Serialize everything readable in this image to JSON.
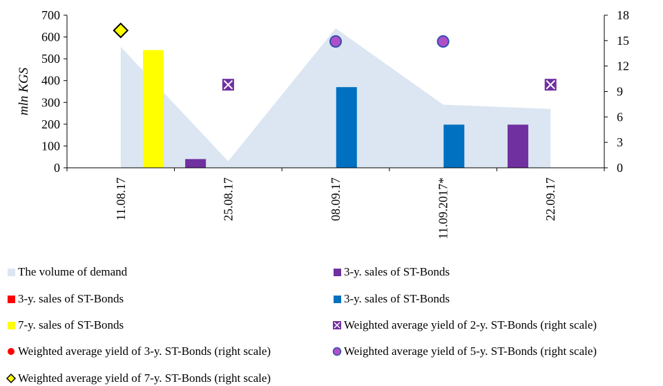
{
  "chart_data": {
    "type": "bar",
    "categories": [
      "11.08.17",
      "25.08.17",
      "08.09.17",
      "11.09.2017*",
      "22.09.17"
    ],
    "ylabel": "mln KGS",
    "ylim": [
      0,
      700
    ],
    "yticks": [
      0,
      100,
      200,
      300,
      400,
      500,
      600,
      700
    ],
    "y2lim": [
      0,
      18
    ],
    "y2ticks": [
      0,
      3,
      6,
      9,
      12,
      15,
      18
    ],
    "grid": false,
    "legend_position": "bottom",
    "colors": {
      "demand": "#dce6f2",
      "purple": "#7030a0",
      "red": "#ff0000",
      "blue": "#0070c0",
      "yellow": "#ffff00",
      "diamond": "#ffff00",
      "circle5": "#b050c8",
      "circle5_edge": "#2f4fb0"
    },
    "series": [
      {
        "name": "The volume of demand",
        "kind": "area",
        "axis": "left",
        "values": [
          555,
          30,
          640,
          290,
          270
        ]
      },
      {
        "name": "3-y. sales of ST-Bonds",
        "kind": "bar",
        "axis": "left",
        "color": "#7030a0",
        "values": [
          0,
          40,
          0,
          0,
          198
        ]
      },
      {
        "name": "3-y. sales of ST-Bonds",
        "kind": "bar",
        "axis": "left",
        "color": "#ff0000",
        "values": [
          0,
          0,
          0,
          0,
          0
        ]
      },
      {
        "name": "3-y. sales of ST-Bonds",
        "kind": "bar",
        "axis": "left",
        "color": "#0070c0",
        "values": [
          0,
          0,
          370,
          198,
          0
        ]
      },
      {
        "name": "7-y. sales of ST-Bonds",
        "kind": "bar",
        "axis": "left",
        "color": "#ffff00",
        "values": [
          540,
          0,
          0,
          0,
          0
        ]
      },
      {
        "name": "Weighted average yield of 2-y. ST-Bonds (right scale)",
        "kind": "marker",
        "axis": "right",
        "values": [
          null,
          9.8,
          null,
          null,
          9.8
        ]
      },
      {
        "name": "Weighted average yield of 3-y. ST-Bonds (right scale)",
        "kind": "marker",
        "axis": "right",
        "values": [
          null,
          null,
          null,
          null,
          null
        ]
      },
      {
        "name": "Weighted average yield of 5-y. ST-Bonds (right scale)",
        "kind": "marker",
        "axis": "right",
        "values": [
          null,
          null,
          14.9,
          14.9,
          null
        ]
      },
      {
        "name": "Weighted average yield of 7-y. ST-Bonds (right scale)",
        "kind": "marker",
        "axis": "right",
        "values": [
          16.2,
          null,
          null,
          null,
          null
        ]
      }
    ]
  }
}
